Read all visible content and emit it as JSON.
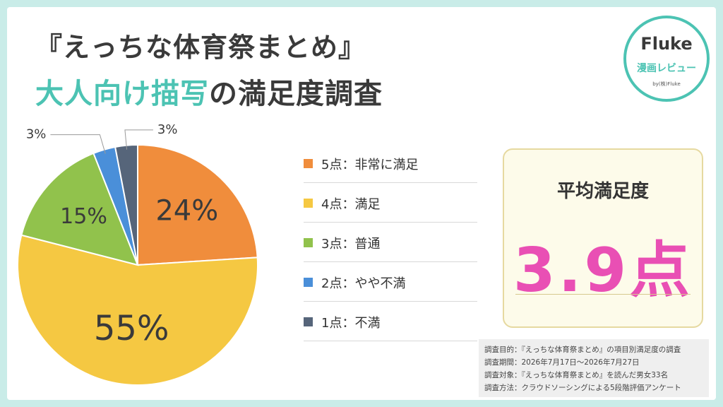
{
  "title": {
    "line1": "『えっちな体育祭まとめ』",
    "line2_accent": "大人向け描写",
    "line2_rest": "の満足度調査"
  },
  "logo": {
    "name": "Fluke",
    "subtitle": "漫画レビュー",
    "by": "by(株)Fluke",
    "color": "#4cc3b3"
  },
  "chart_data": {
    "type": "pie",
    "categories": [
      "5点：非常に満足",
      "4点：満足",
      "3点：普通",
      "2点：やや不満",
      "1点：不満"
    ],
    "values": [
      24,
      55,
      15,
      3,
      3
    ],
    "value_labels": [
      "24%",
      "55%",
      "15%",
      "3%",
      "3%"
    ],
    "colors": [
      "#f08d3c",
      "#f5c842",
      "#91c24c",
      "#4a8fd9",
      "#56657a"
    ],
    "legend_position": "right"
  },
  "average": {
    "title": "平均満足度",
    "value": "3.9点",
    "color": "#e94fb4"
  },
  "notes": [
    "調査目的：『えっちな体育祭まとめ』の項目別満足度の調査",
    "調査期間：2026年7月17日〜2026年7月27日",
    "調査対象：『えっちな体育祭まとめ』を読んだ男女33名",
    "調査方法：クラウドソーシングによる5段階評価アンケート"
  ]
}
